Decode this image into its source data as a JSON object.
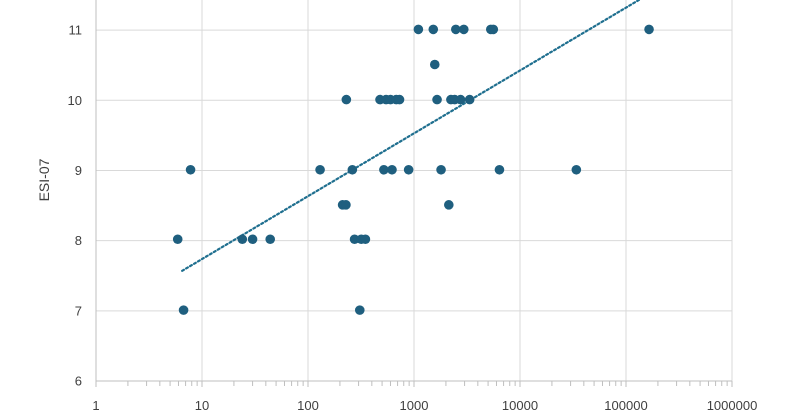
{
  "chart_data": {
    "type": "scatter",
    "title": "",
    "xlabel": "",
    "ylabel": "ESI-07",
    "x_scale": "log",
    "xlim": [
      1,
      1000000
    ],
    "ylim": [
      6,
      11.6
    ],
    "x_ticks": [
      1,
      10,
      100,
      1000,
      10000,
      100000,
      1000000
    ],
    "x_tick_labels": [
      "1",
      "10",
      "100",
      "1000",
      "10000",
      "100000",
      "1000000"
    ],
    "y_ticks": [
      6,
      7,
      8,
      9,
      10,
      11
    ],
    "y_tick_labels": [
      "6",
      "7",
      "8",
      "9",
      "10",
      "11"
    ],
    "grid": true,
    "legend": "none",
    "marker_color": "#1f5f7f",
    "trendline_color": "#1f6f8f",
    "trendline": {
      "type": "logarithmic",
      "x": [
        6.5,
        190000
      ],
      "y": [
        7.57,
        11.57
      ]
    },
    "points": [
      {
        "x": 5.9,
        "y": 8.02
      },
      {
        "x": 6.7,
        "y": 7.01
      },
      {
        "x": 7.8,
        "y": 9.01
      },
      {
        "x": 24,
        "y": 8.02
      },
      {
        "x": 30,
        "y": 8.02
      },
      {
        "x": 44,
        "y": 8.02
      },
      {
        "x": 130,
        "y": 9.01
      },
      {
        "x": 212,
        "y": 8.51
      },
      {
        "x": 228,
        "y": 8.51
      },
      {
        "x": 230,
        "y": 10.01
      },
      {
        "x": 262,
        "y": 9.01
      },
      {
        "x": 275,
        "y": 8.02
      },
      {
        "x": 308,
        "y": 7.01
      },
      {
        "x": 318,
        "y": 8.02
      },
      {
        "x": 348,
        "y": 8.02
      },
      {
        "x": 478,
        "y": 10.01
      },
      {
        "x": 520,
        "y": 9.01
      },
      {
        "x": 545,
        "y": 10.01
      },
      {
        "x": 600,
        "y": 10.01
      },
      {
        "x": 620,
        "y": 9.01
      },
      {
        "x": 680,
        "y": 10.01
      },
      {
        "x": 730,
        "y": 10.01
      },
      {
        "x": 890,
        "y": 9.01
      },
      {
        "x": 1100,
        "y": 11.01
      },
      {
        "x": 1520,
        "y": 11.01
      },
      {
        "x": 1570,
        "y": 10.51
      },
      {
        "x": 1650,
        "y": 10.01
      },
      {
        "x": 1800,
        "y": 9.01
      },
      {
        "x": 2130,
        "y": 8.51
      },
      {
        "x": 2230,
        "y": 10.01
      },
      {
        "x": 2420,
        "y": 10.01
      },
      {
        "x": 2480,
        "y": 11.01
      },
      {
        "x": 2750,
        "y": 10.01
      },
      {
        "x": 2950,
        "y": 11.01
      },
      {
        "x": 3350,
        "y": 10.01
      },
      {
        "x": 5300,
        "y": 11.01
      },
      {
        "x": 5600,
        "y": 11.01
      },
      {
        "x": 6400,
        "y": 9.01
      },
      {
        "x": 34000,
        "y": 9.01
      },
      {
        "x": 165000,
        "y": 11.01
      }
    ]
  }
}
